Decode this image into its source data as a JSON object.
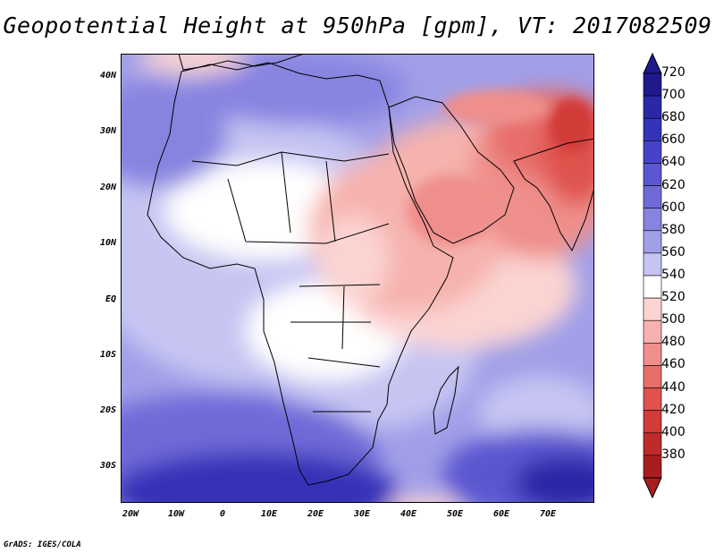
{
  "title": "Geopotential Height at 950hPa [gpm], VT: 2017082509",
  "credit": "GrADS: IGES/COLA",
  "map": {
    "type": "filled-contour",
    "variable": "Geopotential Height",
    "level": "950hPa",
    "units": "gpm",
    "valid_time": "2017082509",
    "region": "Africa, Arabian Peninsula, South Asia",
    "lon_range": [
      -25,
      80
    ],
    "lat_range": [
      -37,
      45
    ],
    "lat_labels": [
      "40N",
      "30N",
      "20N",
      "10N",
      "EQ",
      "10S",
      "20S",
      "30S"
    ],
    "lon_labels": [
      "20W",
      "10W",
      "0",
      "10E",
      "20E",
      "30E",
      "40E",
      "50E",
      "60E",
      "70E"
    ]
  },
  "colorbar": {
    "levels": [
      "720",
      "700",
      "680",
      "660",
      "640",
      "620",
      "600",
      "580",
      "560",
      "540",
      "520",
      "500",
      "480",
      "460",
      "440",
      "420",
      "400",
      "380"
    ],
    "colors": [
      "#1e1a8c",
      "#2a28a6",
      "#3533b8",
      "#4743c8",
      "#5a57d0",
      "#6e6bd8",
      "#8784e0",
      "#a19fe8",
      "#c6c5f2",
      "#ffffff",
      "#fbd4d2",
      "#f6b2ae",
      "#ef8f8b",
      "#e76e6a",
      "#df524e",
      "#d13b38",
      "#bf2b2a",
      "#a81e20"
    ]
  }
}
